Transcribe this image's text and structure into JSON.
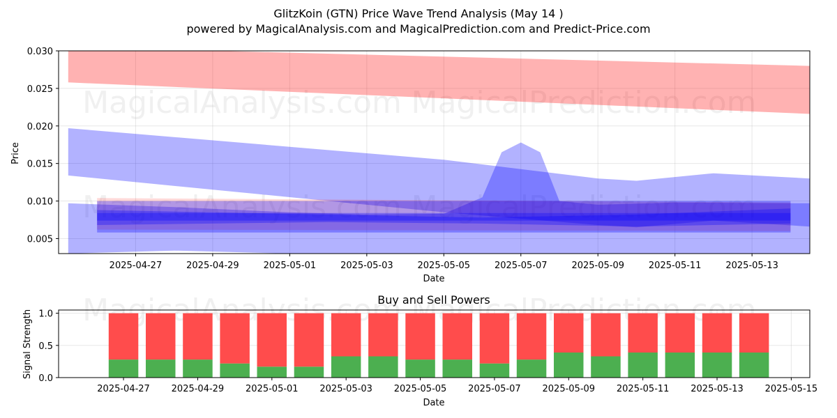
{
  "figure": {
    "title_line1": "GlitzKoin (GTN) Price Wave Trend Analysis (May 14 )",
    "title_line2": "powered by MagicalAnalysis.com and MagicalPrediction.com and Predict-Price.com",
    "watermarks": [
      "MagicalAnalysis.com",
      "MagicalPrediction.com"
    ]
  },
  "chart_data": [
    {
      "type": "area",
      "title": "",
      "xlabel": "Date",
      "ylabel": "Price",
      "xlim": [
        "2025-04-25T00:00",
        "2025-05-14T12:00"
      ],
      "ylim": [
        0.003,
        0.03
      ],
      "x_ticks": [
        "2025-04-27",
        "2025-04-29",
        "2025-05-01",
        "2025-05-03",
        "2025-05-05",
        "2025-05-07",
        "2025-05-09",
        "2025-05-11",
        "2025-05-13"
      ],
      "y_ticks": [
        0.005,
        0.01,
        0.015,
        0.02,
        0.025,
        0.03
      ],
      "y_tick_labels": [
        "0.005",
        "0.010",
        "0.015",
        "0.020",
        "0.025",
        "0.030"
      ],
      "grid": true,
      "bands": [
        {
          "color": "#ff0000",
          "opacity": 0.3,
          "x": [
            "2025-04-25T06:00",
            "2025-05-14T12:00"
          ],
          "upper": [
            0.0305,
            0.028
          ],
          "lower": [
            0.0258,
            0.0216
          ]
        },
        {
          "color": "#0000ff",
          "opacity": 0.3,
          "x": [
            "2025-04-25T06:00",
            "2025-05-05T00:00",
            "2025-05-09T00:00",
            "2025-05-10T00:00",
            "2025-05-12T00:00",
            "2025-05-14T12:00"
          ],
          "upper": [
            0.0197,
            0.0155,
            0.013,
            0.0127,
            0.0137,
            0.013
          ],
          "lower": [
            0.0134,
            0.0085,
            0.0068,
            0.0065,
            0.0074,
            0.0066
          ]
        },
        {
          "color": "#0000ff",
          "opacity": 0.3,
          "x": [
            "2025-04-25T06:00",
            "2025-04-28T00:00",
            "2025-05-01T00:00",
            "2025-05-03T00:00",
            "2025-05-05T00:00",
            "2025-05-06T00:00",
            "2025-05-06T12:00",
            "2025-05-07T00:00",
            "2025-05-07T12:00",
            "2025-05-08T00:00",
            "2025-05-09T00:00",
            "2025-05-11T00:00",
            "2025-05-14T12:00"
          ],
          "upper": [
            0.0097,
            0.0092,
            0.0085,
            0.0082,
            0.0083,
            0.0105,
            0.0165,
            0.0178,
            0.0165,
            0.01,
            0.0095,
            0.0098,
            0.0097
          ],
          "lower": [
            0.003,
            0.0034,
            0.003,
            0.003,
            0.003,
            0.003,
            0.003,
            0.003,
            0.003,
            0.003,
            0.003,
            0.003,
            0.003
          ]
        },
        {
          "color": "#ff0000",
          "opacity": 0.15,
          "x": [
            "2025-04-26T00:00",
            "2025-05-14T00:00"
          ],
          "upper": [
            0.0104,
            0.0098
          ],
          "lower": [
            0.0062,
            0.006
          ]
        },
        {
          "color": "#0000ff",
          "opacity": 0.3,
          "x": [
            "2025-04-26T00:00",
            "2025-05-14T00:00"
          ],
          "upper": [
            0.01,
            0.01
          ],
          "lower": [
            0.0058,
            0.0058
          ]
        },
        {
          "color": "#0000ff",
          "opacity": 0.3,
          "x": [
            "2025-04-26T00:00",
            "2025-05-02T00:00",
            "2025-05-06T00:00",
            "2025-05-10T00:00",
            "2025-05-14T00:00"
          ],
          "upper": [
            0.0088,
            0.0082,
            0.0078,
            0.0082,
            0.009
          ],
          "lower": [
            0.0068,
            0.0072,
            0.007,
            0.0066,
            0.007
          ]
        },
        {
          "color": "#0000ff",
          "opacity": 0.3,
          "x": [
            "2025-04-26T00:00",
            "2025-05-14T00:00"
          ],
          "upper": [
            0.0084,
            0.0084
          ],
          "lower": [
            0.0074,
            0.0074
          ]
        }
      ]
    },
    {
      "type": "bar",
      "stacked": true,
      "title": "Buy and Sell Powers",
      "xlabel": "Date",
      "ylabel": "Signal Strength",
      "xlim": [
        "2025-04-25T06:00",
        "2025-05-15T12:00"
      ],
      "ylim": [
        0,
        1.05
      ],
      "x_ticks": [
        "2025-04-27",
        "2025-04-29",
        "2025-05-01",
        "2025-05-03",
        "2025-05-05",
        "2025-05-07",
        "2025-05-09",
        "2025-05-11",
        "2025-05-13",
        "2025-05-15"
      ],
      "y_ticks": [
        0.0,
        0.5,
        1.0
      ],
      "y_tick_labels": [
        "0.0",
        "0.5",
        "1.0"
      ],
      "grid": true,
      "categories": [
        "2025-04-27",
        "2025-04-28",
        "2025-04-29",
        "2025-04-30",
        "2025-05-01",
        "2025-05-02",
        "2025-05-03",
        "2025-05-04",
        "2025-05-05",
        "2025-05-06",
        "2025-05-07",
        "2025-05-08",
        "2025-05-09",
        "2025-05-10",
        "2025-05-11",
        "2025-05-12",
        "2025-05-13",
        "2025-05-14"
      ],
      "series": [
        {
          "color": "#4caf50",
          "values": [
            0.28,
            0.28,
            0.28,
            0.22,
            0.17,
            0.17,
            0.33,
            0.33,
            0.28,
            0.28,
            0.22,
            0.28,
            0.39,
            0.33,
            0.39,
            0.39,
            0.39,
            0.39
          ]
        },
        {
          "color": "#ff4c4c",
          "values": [
            0.72,
            0.72,
            0.72,
            0.78,
            0.83,
            0.83,
            0.67,
            0.67,
            0.72,
            0.72,
            0.78,
            0.72,
            0.61,
            0.67,
            0.61,
            0.61,
            0.61,
            0.61
          ]
        }
      ]
    }
  ]
}
